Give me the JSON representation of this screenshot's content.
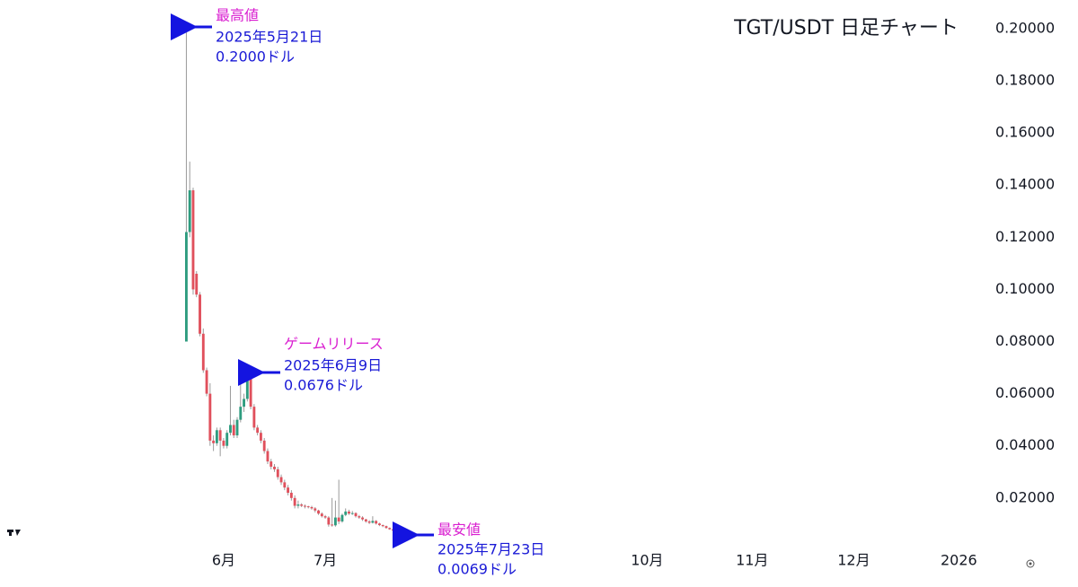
{
  "chart_data": {
    "type": "candlestick",
    "title": "TGT/USDT 日足チャート",
    "x": [
      "2025-05-21",
      "2025-05-22",
      "2025-05-23",
      "2025-05-24",
      "2025-05-25",
      "2025-05-26",
      "2025-05-27",
      "2025-05-28",
      "2025-05-29",
      "2025-05-30",
      "2025-05-31",
      "2025-06-01",
      "2025-06-02",
      "2025-06-03",
      "2025-06-04",
      "2025-06-05",
      "2025-06-06",
      "2025-06-07",
      "2025-06-08",
      "2025-06-09",
      "2025-06-10",
      "2025-06-11",
      "2025-06-12",
      "2025-06-13",
      "2025-06-14",
      "2025-06-15",
      "2025-06-16",
      "2025-06-17",
      "2025-06-18",
      "2025-06-19",
      "2025-06-20",
      "2025-06-21",
      "2025-06-22",
      "2025-06-23",
      "2025-06-24",
      "2025-06-25",
      "2025-06-26",
      "2025-06-27",
      "2025-06-28",
      "2025-06-29",
      "2025-06-30",
      "2025-07-01",
      "2025-07-02",
      "2025-07-03",
      "2025-07-04",
      "2025-07-05",
      "2025-07-06",
      "2025-07-07",
      "2025-07-08",
      "2025-07-09",
      "2025-07-10",
      "2025-07-11",
      "2025-07-12",
      "2025-07-13",
      "2025-07-14",
      "2025-07-15",
      "2025-07-16",
      "2025-07-17",
      "2025-07-18",
      "2025-07-19",
      "2025-07-20",
      "2025-07-21",
      "2025-07-22",
      "2025-07-23"
    ],
    "open": [
      0.08,
      0.122,
      0.138,
      0.106,
      0.098,
      0.083,
      0.069,
      0.06,
      0.042,
      0.041,
      0.046,
      0.042,
      0.04,
      0.045,
      0.048,
      0.044,
      0.05,
      0.055,
      0.058,
      0.066,
      0.055,
      0.047,
      0.045,
      0.042,
      0.038,
      0.034,
      0.032,
      0.031,
      0.028,
      0.026,
      0.024,
      0.022,
      0.02,
      0.017,
      0.0175,
      0.017,
      0.0168,
      0.0165,
      0.016,
      0.0152,
      0.014,
      0.013,
      0.0125,
      0.0098,
      0.0095,
      0.0125,
      0.011,
      0.0135,
      0.0148,
      0.014,
      0.0142,
      0.013,
      0.0125,
      0.0118,
      0.011,
      0.0105,
      0.0112,
      0.0102,
      0.0096,
      0.0092,
      0.0085,
      0.008,
      0.0075,
      0.0072
    ],
    "high": [
      0.2,
      0.149,
      0.139,
      0.107,
      0.099,
      0.085,
      0.07,
      0.064,
      0.044,
      0.047,
      0.047,
      0.043,
      0.046,
      0.063,
      0.05,
      0.051,
      0.066,
      0.06,
      0.068,
      0.0676,
      0.056,
      0.048,
      0.046,
      0.043,
      0.039,
      0.035,
      0.033,
      0.032,
      0.029,
      0.027,
      0.025,
      0.023,
      0.021,
      0.019,
      0.018,
      0.0175,
      0.017,
      0.017,
      0.0165,
      0.0155,
      0.0145,
      0.0135,
      0.013,
      0.02,
      0.019,
      0.027,
      0.014,
      0.016,
      0.0155,
      0.015,
      0.0145,
      0.0135,
      0.013,
      0.012,
      0.0115,
      0.013,
      0.0115,
      0.0105,
      0.0098,
      0.0094,
      0.0087,
      0.0082,
      0.0077,
      0.0074
    ],
    "low": [
      0.08,
      0.12,
      0.098,
      0.097,
      0.082,
      0.068,
      0.059,
      0.04,
      0.038,
      0.04,
      0.036,
      0.039,
      0.039,
      0.044,
      0.043,
      0.043,
      0.049,
      0.053,
      0.057,
      0.054,
      0.046,
      0.044,
      0.041,
      0.037,
      0.033,
      0.031,
      0.03,
      0.027,
      0.025,
      0.023,
      0.021,
      0.019,
      0.016,
      0.016,
      0.0165,
      0.016,
      0.016,
      0.0155,
      0.0145,
      0.0135,
      0.0125,
      0.012,
      0.009,
      0.009,
      0.009,
      0.01,
      0.0105,
      0.013,
      0.0135,
      0.0135,
      0.0125,
      0.012,
      0.0112,
      0.0105,
      0.01,
      0.0102,
      0.0098,
      0.0092,
      0.0088,
      0.0082,
      0.0078,
      0.0073,
      0.007,
      0.0069
    ],
    "close": [
      0.122,
      0.138,
      0.1,
      0.098,
      0.083,
      0.069,
      0.06,
      0.042,
      0.041,
      0.046,
      0.042,
      0.04,
      0.045,
      0.048,
      0.044,
      0.05,
      0.055,
      0.058,
      0.066,
      0.055,
      0.047,
      0.045,
      0.042,
      0.038,
      0.034,
      0.032,
      0.031,
      0.028,
      0.026,
      0.024,
      0.022,
      0.02,
      0.017,
      0.0175,
      0.017,
      0.0168,
      0.0165,
      0.016,
      0.0152,
      0.014,
      0.013,
      0.0125,
      0.0098,
      0.0095,
      0.0125,
      0.011,
      0.0135,
      0.0148,
      0.014,
      0.0142,
      0.013,
      0.0125,
      0.0118,
      0.011,
      0.0105,
      0.0112,
      0.0102,
      0.0096,
      0.0092,
      0.0085,
      0.008,
      0.0075,
      0.0072,
      0.0071
    ],
    "up_color": "#2e9c7f",
    "down_color": "#e0505c",
    "wick_color": "#9a9a9a",
    "xlim": [
      "2025-03-27",
      "2026-01-10"
    ],
    "xticks": [
      {
        "value": "2025-06-01",
        "label": "6月"
      },
      {
        "value": "2025-07-01",
        "label": "7月"
      },
      {
        "value": "2025-10-04",
        "label": "10月"
      },
      {
        "value": "2025-11-04",
        "label": "11月"
      },
      {
        "value": "2025-12-04",
        "label": "12月"
      },
      {
        "value": "2026-01-04",
        "label": "2026"
      }
    ],
    "ylim": [
      0.001,
      0.211
    ],
    "yticks": [
      {
        "value": 0.02,
        "label": "0.02000"
      },
      {
        "value": 0.04,
        "label": "0.04000"
      },
      {
        "value": 0.06,
        "label": "0.06000"
      },
      {
        "value": 0.08,
        "label": "0.08000"
      },
      {
        "value": 0.1,
        "label": "0.10000"
      },
      {
        "value": 0.12,
        "label": "0.12000"
      },
      {
        "value": 0.14,
        "label": "0.14000"
      },
      {
        "value": 0.16,
        "label": "0.16000"
      },
      {
        "value": 0.18,
        "label": "0.18000"
      },
      {
        "value": 0.2,
        "label": "0.20000"
      }
    ],
    "grid": false,
    "annotations": [
      {
        "title": "最高値",
        "date": "2025年5月21日",
        "price": "0.2000ドル"
      },
      {
        "title": "ゲームリリース",
        "date": "2025年6月9日",
        "price": "0.0676ドル"
      },
      {
        "title": "最安値",
        "date": "2025年7月23日",
        "price": "0.0069ドル"
      }
    ]
  }
}
